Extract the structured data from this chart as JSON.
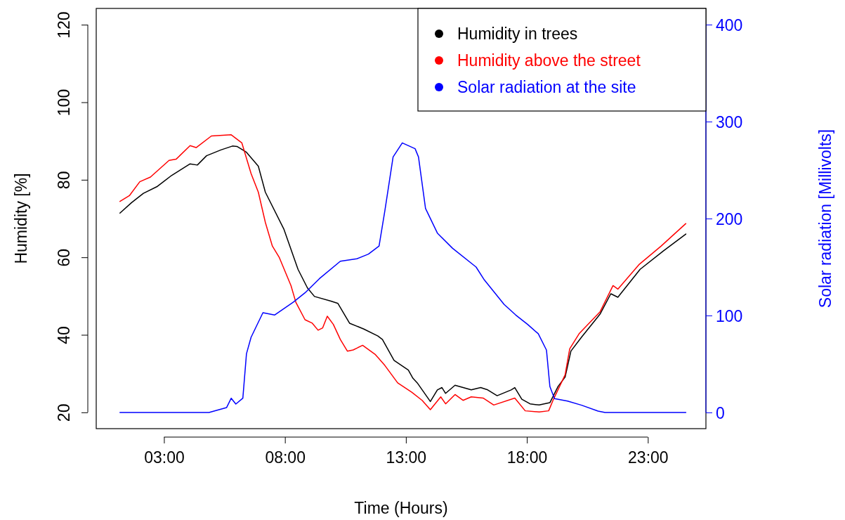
{
  "chart_data": {
    "type": "line",
    "xlabel": "Time (Hours)",
    "ylabel": "Humidity [%]",
    "y2label": "Solar radiation [Millivolts]",
    "xlim": [
      0.2,
      25.4
    ],
    "xticks": [
      {
        "value": 3,
        "label": "03:00"
      },
      {
        "value": 8,
        "label": "08:00"
      },
      {
        "value": 13,
        "label": "13:00"
      },
      {
        "value": 18,
        "label": "18:00"
      },
      {
        "value": 23,
        "label": "23:00"
      }
    ],
    "ylim": [
      15.8,
      124.2
    ],
    "yticks": [
      20,
      40,
      60,
      80,
      100,
      120
    ],
    "y2lim": [
      -16.7,
      416.7
    ],
    "y2ticks": [
      0,
      100,
      200,
      300,
      400
    ],
    "legend": "top right",
    "grid": false,
    "series": [
      {
        "name": "Humidity in trees",
        "color": "#000000",
        "x": [
          1.18,
          1.66,
          2.15,
          2.73,
          3.31,
          4.08,
          4.38,
          4.76,
          5.35,
          5.83,
          6.02,
          6.41,
          6.9,
          7.19,
          7.96,
          8.54,
          8.93,
          9.22,
          9.9,
          10.19,
          10.67,
          11.26,
          11.84,
          12.03,
          12.51,
          13.1,
          13.29,
          13.47,
          14.01,
          14.3,
          14.49,
          14.64,
          15.03,
          15.7,
          16.09,
          16.38,
          16.77,
          17.35,
          17.5,
          17.79,
          18.13,
          18.51,
          18.95,
          19.29,
          19.58,
          19.82,
          20.26,
          21.03,
          21.47,
          21.76,
          22.68,
          23.65,
          24.57
        ],
        "values": [
          71.4,
          74.1,
          76.5,
          78.3,
          81.1,
          84.1,
          83.8,
          86.2,
          87.7,
          88.7,
          88.6,
          87.1,
          83.5,
          76.8,
          67.2,
          56.9,
          52.1,
          49.9,
          48.7,
          48.1,
          43,
          41.5,
          39.7,
          38.8,
          33.4,
          30.9,
          28.8,
          27.6,
          22.8,
          25.8,
          26.4,
          24.9,
          27,
          25.8,
          26.4,
          25.8,
          24.3,
          25.8,
          26.4,
          23.4,
          22.2,
          21.9,
          22.5,
          26.7,
          29.1,
          35.8,
          39.4,
          45.4,
          50.6,
          49.7,
          56.9,
          61.7,
          66
        ]
      },
      {
        "name": "Humidity above the street",
        "color": "#ff0000",
        "x": [
          1.18,
          1.57,
          2,
          2.44,
          3.21,
          3.5,
          4.08,
          4.33,
          4.96,
          5.78,
          6.22,
          6.6,
          6.9,
          7.19,
          7.48,
          7.77,
          8.25,
          8.45,
          8.83,
          9.13,
          9.37,
          9.56,
          9.75,
          10,
          10.29,
          10.58,
          10.82,
          11.21,
          11.74,
          12.13,
          12.66,
          13.24,
          13.67,
          14.01,
          14.44,
          14.64,
          15.03,
          15.36,
          15.7,
          16.19,
          16.63,
          17.5,
          17.93,
          18.51,
          18.9,
          19.1,
          19.58,
          19.77,
          20.16,
          21.03,
          21.56,
          21.76,
          22.63,
          23.55,
          24.57
        ],
        "values": [
          74.4,
          75.9,
          79.5,
          80.7,
          85,
          85.3,
          88.8,
          88.3,
          91.3,
          91.6,
          89.5,
          81.6,
          76.8,
          69,
          62.9,
          59.9,
          52.7,
          48.4,
          43.9,
          43,
          41.2,
          41.8,
          44.8,
          42.7,
          38.8,
          35.8,
          36.1,
          37.3,
          34.9,
          32.1,
          27.6,
          25.2,
          23.1,
          20.7,
          24,
          22.2,
          24.6,
          23.1,
          24,
          23.7,
          21.9,
          23.7,
          20.4,
          20.1,
          20.4,
          23.4,
          29.7,
          36.4,
          40.3,
          46,
          52.7,
          51.8,
          58.1,
          62.9,
          68.7
        ]
      },
      {
        "name": "Solar radiation at the site",
        "color": "#0000ff",
        "axis": "y2",
        "x": [
          1.18,
          4.86,
          5.25,
          5.59,
          5.78,
          5.97,
          6.26,
          6.41,
          6.6,
          7.09,
          7.57,
          8.35,
          8.83,
          9.42,
          10.29,
          10.97,
          11.45,
          11.89,
          12.13,
          12.47,
          12.85,
          13.38,
          13.52,
          13.81,
          14.3,
          14.93,
          15.9,
          16.24,
          17.06,
          17.54,
          18.03,
          18.47,
          18.81,
          18.95,
          19.14,
          19.68,
          20.26,
          20.94,
          21.23,
          24.57
        ],
        "values": [
          0,
          0,
          2.7,
          5.1,
          14.7,
          8.7,
          14.7,
          60.6,
          77.5,
          102.9,
          100.5,
          113.8,
          123.4,
          137.9,
          156,
          158.5,
          163.3,
          171.7,
          208,
          263.5,
          278,
          272,
          263.5,
          210.4,
          185,
          169.3,
          150,
          136.7,
          111.4,
          100.5,
          90.8,
          81.2,
          64.3,
          26.8,
          14.3,
          11.8,
          7.5,
          1.4,
          0,
          0
        ]
      }
    ]
  }
}
